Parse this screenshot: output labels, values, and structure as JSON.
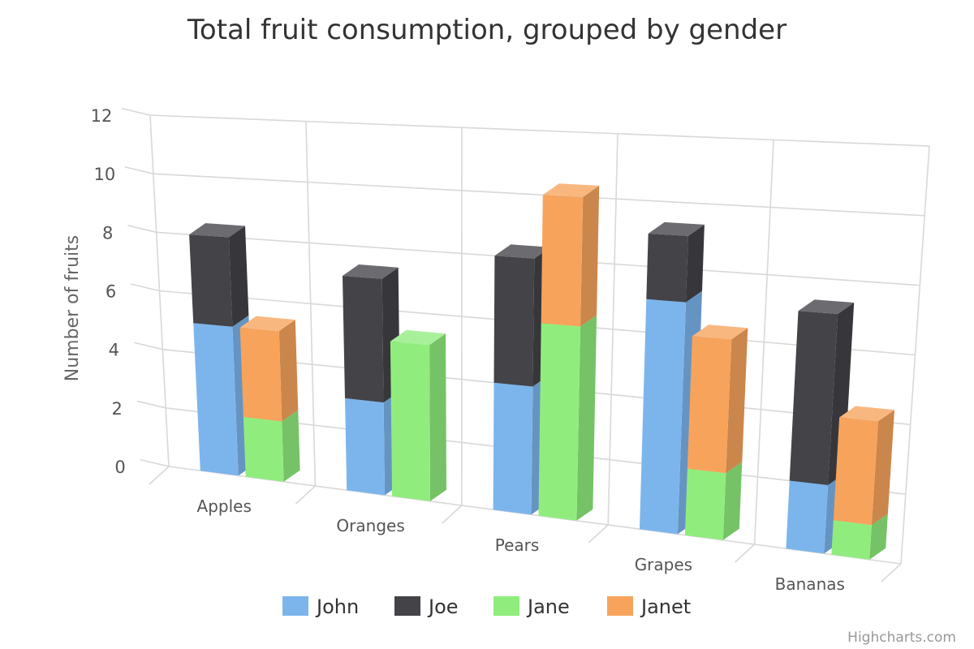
{
  "chart_data": {
    "type": "bar",
    "variant": "3d-stacked-grouped-column",
    "title": "Total fruit consumption, grouped by gender",
    "ylabel": "Number of fruits",
    "xlabel": "",
    "categories": [
      "Apples",
      "Oranges",
      "Pears",
      "Grapes",
      "Bananas"
    ],
    "ylim": [
      0,
      12
    ],
    "yticks": [
      0,
      2,
      4,
      6,
      8,
      10,
      12
    ],
    "grid": true,
    "legend_position": "bottom",
    "series": [
      {
        "name": "John",
        "stack": "male",
        "color": "#7cb5ec",
        "values": [
          5,
          3,
          4,
          7,
          2
        ]
      },
      {
        "name": "Joe",
        "stack": "male",
        "color": "#434348",
        "values": [
          3,
          4,
          4,
          2,
          5
        ]
      },
      {
        "name": "Jane",
        "stack": "female",
        "color": "#90ed7d",
        "values": [
          2,
          5,
          6,
          2,
          1
        ]
      },
      {
        "name": "Janet",
        "stack": "female",
        "color": "#f7a35c",
        "values": [
          3,
          0,
          4,
          4,
          3
        ]
      }
    ]
  },
  "credits": "Highcharts.com"
}
